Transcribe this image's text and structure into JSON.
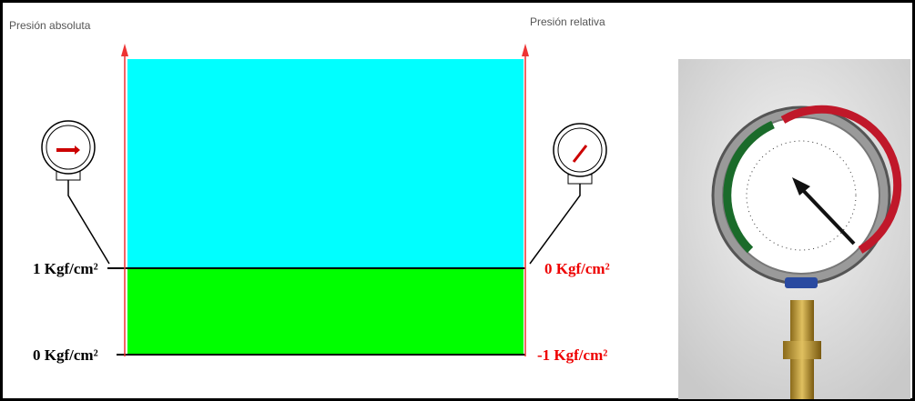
{
  "header": {
    "left_title": "Presión absoluta",
    "right_title": "Presión relativa"
  },
  "scale": {
    "absolute": [
      "1 Kgf/cm²",
      "0 Kgf/cm²"
    ],
    "relative": [
      "0 Kgf/cm²",
      "-1 Kgf/cm²"
    ]
  }
}
